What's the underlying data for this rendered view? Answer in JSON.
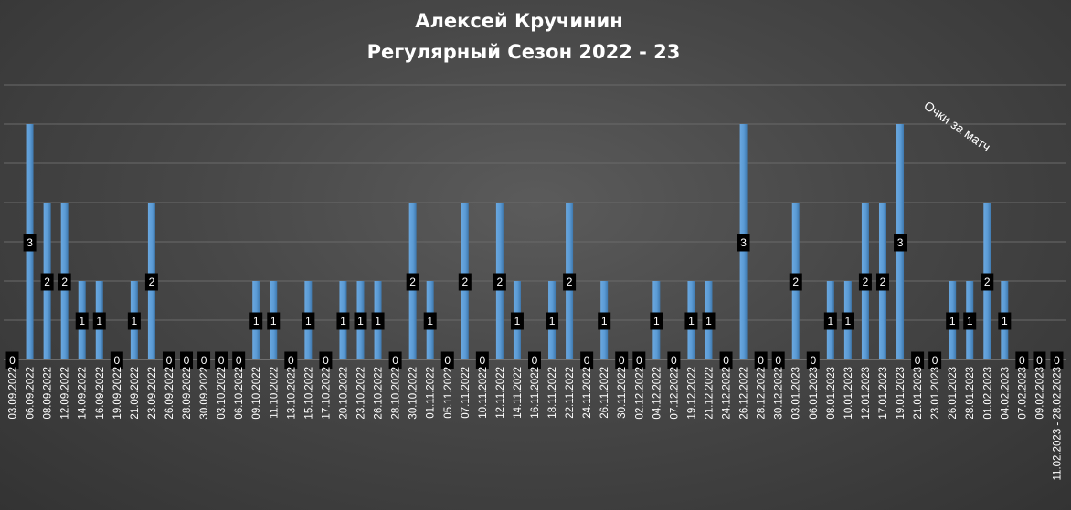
{
  "chart_data": {
    "type": "bar",
    "title": "Алексей Кручинин",
    "subtitle": "Регулярный Сезон 2022 - 23",
    "series_label": "Очки за матч",
    "ylim": [
      0,
      3.5
    ],
    "grid": true,
    "colors": {
      "bar": "#5b9bd5",
      "bar_dark": "#3f78ad",
      "grid": "#6a6a6a",
      "label_bg": "#000000",
      "text": "#ffffff"
    },
    "categories": [
      "03.09.2022",
      "06.09.2022",
      "08.09.2022",
      "12.09.2022",
      "14.09.2022",
      "16.09.2022",
      "19.09.2022",
      "21.09.2022",
      "23.09.2022",
      "26.09.2022",
      "28.09.2022",
      "30.09.2022",
      "03.10.2022",
      "06.10.2022",
      "09.10.2022",
      "11.10.2022",
      "13.10.2022",
      "15.10.2022",
      "17.10.2022",
      "20.10.2022",
      "23.10.2022",
      "26.10.2022",
      "28.10.2022",
      "30.10.2022",
      "01.11.2022",
      "05.11.2022",
      "07.11.2022",
      "10.11.2022",
      "12.11.2022",
      "14.11.2022",
      "16.11.2022",
      "18.11.2022",
      "22.11.2022",
      "24.11.2022",
      "26.11.2022",
      "30.11.2022",
      "02.12.2022",
      "04.12.2022",
      "07.12.2022",
      "19.12.2022",
      "21.12.2022",
      "24.12.2022",
      "26.12.2022",
      "28.12.2022",
      "30.12.2022",
      "03.01.2023",
      "06.01.2023",
      "08.01.2023",
      "10.01.2023",
      "12.01.2023",
      "17.01.2023",
      "19.01.2023",
      "21.01.2023",
      "23.01.2023",
      "26.01.2023",
      "28.01.2023",
      "01.02.2023",
      "04.02.2023",
      "07.02.2023",
      "09.02.2023",
      "11.02.2023 - 28.02.2023"
    ],
    "values": [
      0,
      3,
      2,
      2,
      1,
      1,
      0,
      1,
      2,
      0,
      0,
      0,
      0,
      0,
      1,
      1,
      0,
      1,
      0,
      1,
      1,
      1,
      0,
      2,
      1,
      0,
      2,
      0,
      2,
      1,
      0,
      1,
      2,
      0,
      1,
      0,
      0,
      1,
      0,
      1,
      1,
      0,
      3,
      0,
      0,
      2,
      0,
      1,
      1,
      2,
      2,
      3,
      0,
      0,
      1,
      1,
      2,
      1,
      0,
      0,
      0
    ]
  }
}
